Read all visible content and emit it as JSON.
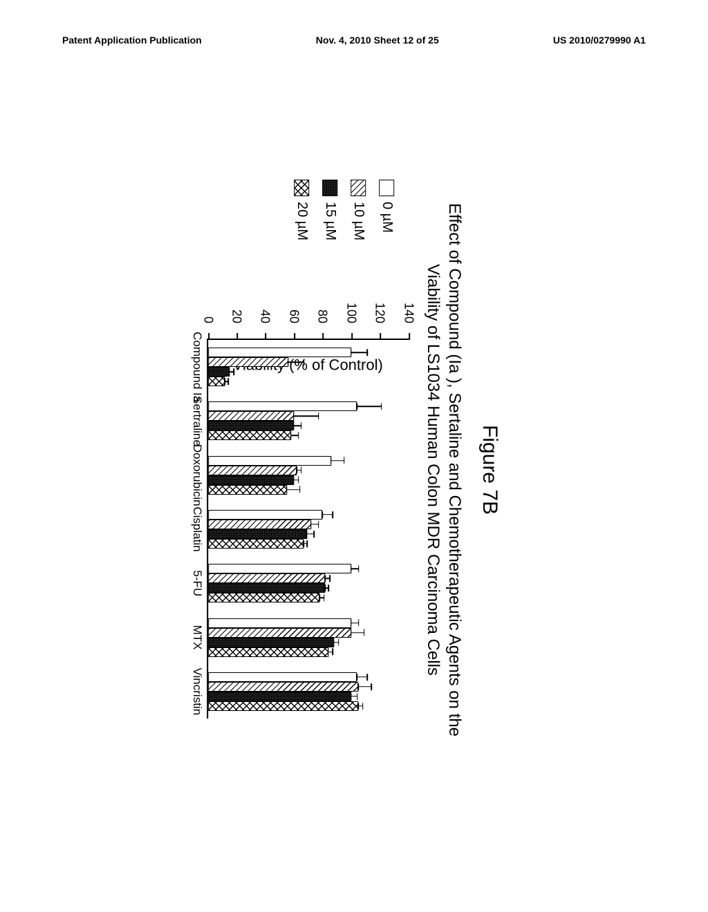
{
  "header": {
    "left": "Patent Application Publication",
    "center": "Nov. 4, 2010  Sheet 12 of 25",
    "right": "US 2010/0279990 A1"
  },
  "figure": {
    "label": "Figure 7B",
    "title_line1": "Effect of Compound (Ia ), Sertaline and Chemotherapeutic Agents on the",
    "title_line2": "Viability of LS1034 Human Colon MDR Carcinoma Cells"
  },
  "chart": {
    "type": "bar",
    "y_axis_title": "Viability (% of Control)",
    "ylim": [
      0,
      140
    ],
    "yticks": [
      0,
      20,
      40,
      60,
      80,
      100,
      120,
      140
    ],
    "categories": [
      "Compound Ia",
      "Sertraline",
      "Doxorubicin",
      "Cisplatin",
      "5-FU",
      "MTX",
      "Vincristin"
    ],
    "series": [
      {
        "name": "0 µM",
        "fill": "white"
      },
      {
        "name": "10 µM",
        "fill": "diag"
      },
      {
        "name": "15 µM",
        "fill": "dense"
      },
      {
        "name": "20 µM",
        "fill": "cross"
      }
    ],
    "values": [
      [
        100,
        56,
        15,
        12
      ],
      [
        104,
        60,
        60,
        58
      ],
      [
        86,
        62,
        60,
        55
      ],
      [
        80,
        72,
        69,
        67
      ],
      [
        100,
        82,
        82,
        78
      ],
      [
        100,
        100,
        88,
        84
      ],
      [
        104,
        105,
        100,
        105
      ]
    ],
    "errors": [
      [
        12,
        12,
        4,
        3
      ],
      [
        18,
        18,
        6,
        6
      ],
      [
        10,
        4,
        4,
        10
      ],
      [
        8,
        6,
        6,
        3
      ],
      [
        6,
        4,
        3,
        4
      ],
      [
        6,
        10,
        4,
        4
      ],
      [
        8,
        10,
        5,
        4
      ]
    ],
    "label_fontsize": 17,
    "axis_title_fontsize": 22,
    "bar_color": "#000000",
    "background_color": "#ffffff"
  }
}
